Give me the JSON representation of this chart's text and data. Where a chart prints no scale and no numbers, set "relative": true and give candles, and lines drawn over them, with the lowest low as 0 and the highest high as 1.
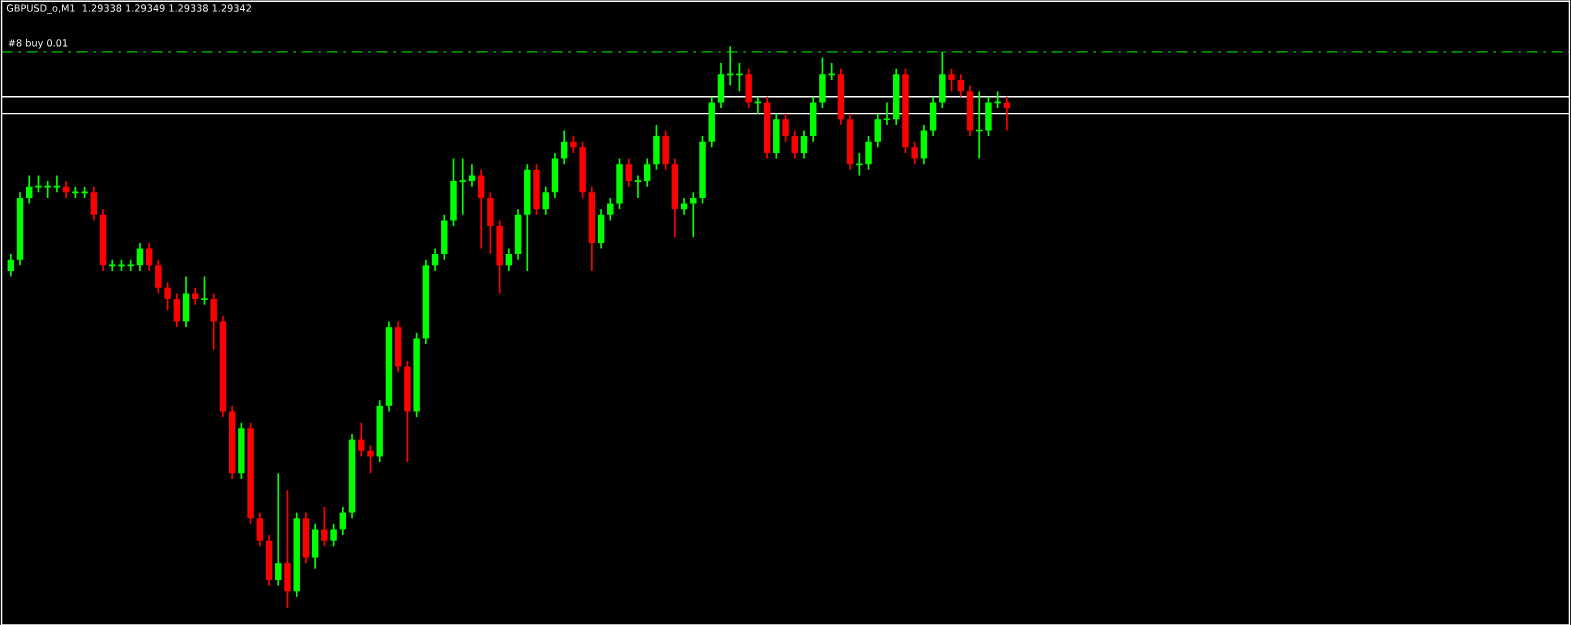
{
  "chart_data": {
    "type": "candlestick",
    "relative": true,
    "title": "GBPUSD_o,M1  1.29338 1.29349 1.29338 1.29342",
    "grid": false,
    "legend": false,
    "colors": [
      "#00ff00",
      "#00ff00",
      "#00ff00",
      "#00ff00",
      "#00ff00",
      "#00ff00",
      "#ff0000",
      "#00ff00",
      "#00ff00",
      "#ff0000",
      "#ff0000",
      "#00ff00",
      "#00ff00",
      "#00ff00",
      "#00ff00",
      "#ff0000",
      "#ff0000",
      "#ff0000",
      "#ff0000",
      "#00ff00",
      "#ff0000",
      "#00ff00",
      "#ff0000",
      "#ff0000",
      "#ff0000",
      "#00ff00",
      "#ff0000",
      "#ff0000",
      "#ff0000",
      "#00ff00",
      "#ff0000",
      "#00ff00",
      "#ff0000",
      "#00ff00",
      "#ff0000",
      "#00ff00",
      "#00ff00",
      "#00ff00",
      "#ff0000",
      "#ff0000",
      "#00ff00",
      "#00ff00",
      "#ff0000",
      "#ff0000",
      "#00ff00",
      "#00ff00",
      "#00ff00",
      "#00ff00",
      "#00ff00",
      "#00ff00",
      "#00ff00",
      "#ff0000",
      "#ff0000",
      "#ff0000",
      "#00ff00",
      "#00ff00",
      "#00ff00",
      "#ff0000",
      "#00ff00",
      "#00ff00",
      "#00ff00",
      "#ff0000",
      "#ff0000",
      "#ff0000",
      "#00ff00",
      "#00ff00",
      "#00ff00",
      "#ff0000",
      "#00ff00",
      "#00ff00",
      "#00ff00",
      "#ff0000",
      "#ff0000",
      "#00ff00",
      "#00ff00",
      "#00ff00",
      "#00ff00",
      "#00ff00",
      "#00ff00",
      "#00ff00",
      "#ff0000",
      "#00ff00",
      "#ff0000",
      "#00ff00",
      "#ff0000",
      "#ff0000",
      "#00ff00",
      "#00ff00",
      "#00ff00",
      "#00ff00",
      "#ff0000",
      "#ff0000",
      "#00ff00",
      "#00ff00",
      "#00ff00",
      "#00ff00",
      "#00ff00",
      "#ff0000",
      "#ff0000",
      "#00ff00",
      "#00ff00",
      "#00ff00",
      "#ff0000",
      "#ff0000",
      "#ff0000",
      "#00ff00",
      "#00ff00",
      "#00ff00",
      "#ff0000"
    ],
    "categories": [
      null,
      null,
      null,
      null,
      null,
      null,
      null,
      null,
      null,
      null,
      null,
      null,
      null,
      null,
      null,
      null,
      null,
      null,
      null,
      null,
      null,
      null,
      null,
      null,
      null,
      null,
      null,
      null,
      null,
      null,
      null,
      null,
      null,
      null,
      null,
      null,
      null,
      null,
      null,
      null,
      null,
      null,
      null,
      null,
      null,
      null,
      null,
      null,
      null,
      null,
      null,
      null,
      null,
      null,
      null,
      null,
      null,
      null,
      null,
      null,
      null,
      null,
      null,
      null,
      null,
      null,
      null,
      null,
      null,
      null,
      null,
      null,
      null,
      null,
      null,
      null,
      null,
      null,
      null,
      null,
      null,
      null,
      null,
      null,
      null,
      null,
      null,
      null,
      null,
      null,
      null,
      null,
      null,
      null,
      null,
      null,
      null,
      null,
      null,
      null,
      null,
      null,
      null,
      null,
      null,
      null,
      null,
      null,
      null
    ],
    "ohlc": [
      [
        0.6,
        0.63,
        0.59,
        0.62
      ],
      [
        0.62,
        0.74,
        0.61,
        0.73
      ],
      [
        0.73,
        0.77,
        0.72,
        0.75
      ],
      [
        0.75,
        0.77,
        0.74,
        0.75
      ],
      [
        0.75,
        0.76,
        0.73,
        0.75
      ],
      [
        0.75,
        0.77,
        0.74,
        0.75
      ],
      [
        0.75,
        0.76,
        0.73,
        0.74
      ],
      [
        0.74,
        0.75,
        0.73,
        0.74
      ],
      [
        0.74,
        0.75,
        0.73,
        0.74
      ],
      [
        0.74,
        0.75,
        0.69,
        0.7
      ],
      [
        0.7,
        0.71,
        0.6,
        0.61
      ],
      [
        0.61,
        0.62,
        0.6,
        0.61
      ],
      [
        0.61,
        0.62,
        0.6,
        0.61
      ],
      [
        0.61,
        0.62,
        0.6,
        0.61
      ],
      [
        0.61,
        0.65,
        0.6,
        0.64
      ],
      [
        0.64,
        0.65,
        0.6,
        0.61
      ],
      [
        0.61,
        0.62,
        0.56,
        0.57
      ],
      [
        0.57,
        0.58,
        0.53,
        0.55
      ],
      [
        0.55,
        0.56,
        0.5,
        0.51
      ],
      [
        0.51,
        0.59,
        0.5,
        0.56
      ],
      [
        0.56,
        0.57,
        0.54,
        0.55
      ],
      [
        0.55,
        0.59,
        0.54,
        0.55
      ],
      [
        0.55,
        0.56,
        0.46,
        0.51
      ],
      [
        0.51,
        0.52,
        0.34,
        0.35
      ],
      [
        0.35,
        0.36,
        0.23,
        0.24
      ],
      [
        0.24,
        0.33,
        0.23,
        0.32
      ],
      [
        0.32,
        0.33,
        0.15,
        0.16
      ],
      [
        0.16,
        0.17,
        0.11,
        0.12
      ],
      [
        0.12,
        0.13,
        0.04,
        0.05
      ],
      [
        0.05,
        0.24,
        0.04,
        0.08
      ],
      [
        0.08,
        0.21,
        0.0,
        0.03
      ],
      [
        0.03,
        0.17,
        0.02,
        0.16
      ],
      [
        0.16,
        0.17,
        0.08,
        0.09
      ],
      [
        0.09,
        0.15,
        0.07,
        0.14
      ],
      [
        0.14,
        0.18,
        0.11,
        0.12
      ],
      [
        0.12,
        0.15,
        0.11,
        0.14
      ],
      [
        0.14,
        0.18,
        0.13,
        0.17
      ],
      [
        0.17,
        0.31,
        0.16,
        0.3
      ],
      [
        0.3,
        0.33,
        0.27,
        0.28
      ],
      [
        0.28,
        0.29,
        0.24,
        0.27
      ],
      [
        0.27,
        0.37,
        0.26,
        0.36
      ],
      [
        0.36,
        0.51,
        0.35,
        0.5
      ],
      [
        0.5,
        0.51,
        0.42,
        0.43
      ],
      [
        0.43,
        0.44,
        0.26,
        0.35
      ],
      [
        0.35,
        0.49,
        0.34,
        0.48
      ],
      [
        0.48,
        0.62,
        0.47,
        0.61
      ],
      [
        0.61,
        0.64,
        0.6,
        0.63
      ],
      [
        0.63,
        0.7,
        0.62,
        0.69
      ],
      [
        0.69,
        0.8,
        0.68,
        0.76
      ],
      [
        0.76,
        0.8,
        0.7,
        0.76
      ],
      [
        0.76,
        0.79,
        0.75,
        0.77
      ],
      [
        0.77,
        0.78,
        0.64,
        0.73
      ],
      [
        0.73,
        0.74,
        0.63,
        0.68
      ],
      [
        0.68,
        0.69,
        0.56,
        0.61
      ],
      [
        0.61,
        0.64,
        0.6,
        0.63
      ],
      [
        0.63,
        0.71,
        0.62,
        0.7
      ],
      [
        0.7,
        0.79,
        0.6,
        0.78
      ],
      [
        0.78,
        0.79,
        0.7,
        0.71
      ],
      [
        0.71,
        0.75,
        0.7,
        0.74
      ],
      [
        0.74,
        0.81,
        0.73,
        0.8
      ],
      [
        0.8,
        0.85,
        0.79,
        0.83
      ],
      [
        0.83,
        0.84,
        0.81,
        0.82
      ],
      [
        0.82,
        0.83,
        0.73,
        0.74
      ],
      [
        0.74,
        0.75,
        0.6,
        0.65
      ],
      [
        0.65,
        0.71,
        0.64,
        0.7
      ],
      [
        0.7,
        0.73,
        0.69,
        0.72
      ],
      [
        0.72,
        0.8,
        0.71,
        0.79
      ],
      [
        0.79,
        0.8,
        0.75,
        0.76
      ],
      [
        0.76,
        0.77,
        0.73,
        0.76
      ],
      [
        0.76,
        0.8,
        0.75,
        0.79
      ],
      [
        0.79,
        0.86,
        0.78,
        0.84
      ],
      [
        0.84,
        0.85,
        0.78,
        0.79
      ],
      [
        0.79,
        0.8,
        0.66,
        0.71
      ],
      [
        0.71,
        0.73,
        0.7,
        0.72
      ],
      [
        0.72,
        0.74,
        0.66,
        0.73
      ],
      [
        0.73,
        0.84,
        0.72,
        0.83
      ],
      [
        0.83,
        0.91,
        0.82,
        0.9
      ],
      [
        0.9,
        0.97,
        0.89,
        0.95
      ],
      [
        0.95,
        1.0,
        0.93,
        0.95
      ],
      [
        0.95,
        0.97,
        0.92,
        0.95
      ],
      [
        0.95,
        0.96,
        0.89,
        0.9
      ],
      [
        0.9,
        0.91,
        0.88,
        0.9
      ],
      [
        0.9,
        0.91,
        0.8,
        0.81
      ],
      [
        0.81,
        0.88,
        0.8,
        0.87
      ],
      [
        0.87,
        0.88,
        0.83,
        0.84
      ],
      [
        0.84,
        0.85,
        0.8,
        0.81
      ],
      [
        0.81,
        0.85,
        0.8,
        0.84
      ],
      [
        0.84,
        0.91,
        0.83,
        0.9
      ],
      [
        0.9,
        0.98,
        0.89,
        0.95
      ],
      [
        0.95,
        0.97,
        0.94,
        0.95
      ],
      [
        0.95,
        0.96,
        0.86,
        0.87
      ],
      [
        0.87,
        0.88,
        0.78,
        0.79
      ],
      [
        0.79,
        0.81,
        0.77,
        0.79
      ],
      [
        0.79,
        0.84,
        0.78,
        0.83
      ],
      [
        0.83,
        0.88,
        0.82,
        0.87
      ],
      [
        0.87,
        0.9,
        0.86,
        0.87
      ],
      [
        0.87,
        0.96,
        0.86,
        0.95
      ],
      [
        0.95,
        0.96,
        0.81,
        0.82
      ],
      [
        0.82,
        0.83,
        0.79,
        0.8
      ],
      [
        0.8,
        0.86,
        0.79,
        0.85
      ],
      [
        0.85,
        0.91,
        0.84,
        0.9
      ],
      [
        0.9,
        0.99,
        0.89,
        0.95
      ],
      [
        0.95,
        0.96,
        0.92,
        0.94
      ],
      [
        0.94,
        0.95,
        0.91,
        0.92
      ],
      [
        0.92,
        0.93,
        0.84,
        0.85
      ],
      [
        0.85,
        0.92,
        0.8,
        0.85
      ],
      [
        0.85,
        0.91,
        0.84,
        0.9
      ],
      [
        0.9,
        0.92,
        0.89,
        0.9
      ],
      [
        0.9,
        0.91,
        0.85,
        0.89
      ]
    ],
    "ref_lines": [
      {
        "axis": "y",
        "value": 0.99,
        "label": "#8 buy 0.01",
        "color": "#00c800",
        "line_style": "dashed"
      },
      {
        "axis": "y",
        "value": 0.91,
        "color": "#ffffff",
        "line_style": "solid"
      },
      {
        "axis": "y",
        "value": 0.88,
        "color": "#ffffff",
        "line_style": "solid"
      }
    ]
  }
}
